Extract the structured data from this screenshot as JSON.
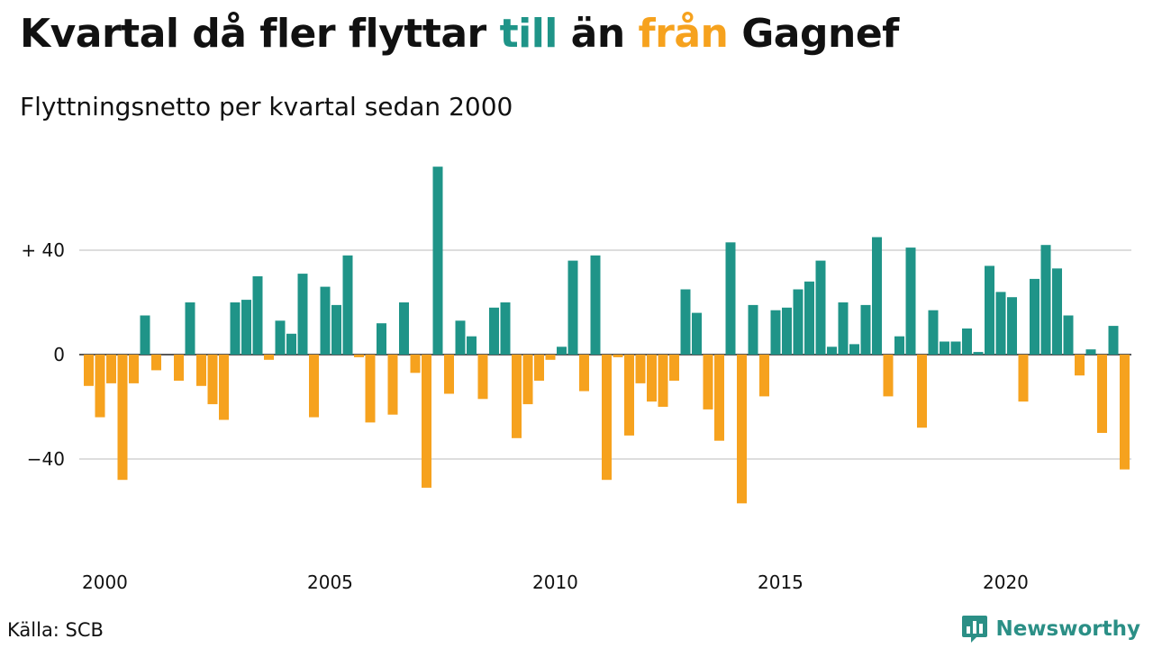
{
  "title": {
    "part1": "Kvartal då fler flyttar ",
    "till": "till",
    "part2": " än ",
    "fran": "från",
    "part3": " Gagnef"
  },
  "subtitle": "Flyttningsnetto per kvartal sedan 2000",
  "source": "Källa: SCB",
  "brand": {
    "name": "Newsworthy",
    "logo_icon": "newsworthy-bar-chart-icon"
  },
  "colors": {
    "positive": "#1f9488",
    "negative": "#f6a21e",
    "grid": "#dddddd",
    "brand": "#2b8f86"
  },
  "chart_data": {
    "type": "bar",
    "x_start": "2000 Q1",
    "x_tick_labels": [
      "2000",
      "2005",
      "2010",
      "2015",
      "2020"
    ],
    "y_tick_labels": [
      "+ 40",
      "0",
      "−40"
    ],
    "ylim": [
      -60,
      75
    ],
    "grid": true,
    "values": [
      -12,
      -24,
      -11,
      -48,
      -11,
      15,
      -6,
      0,
      -10,
      20,
      -12,
      -19,
      -25,
      20,
      21,
      30,
      -2,
      13,
      8,
      31,
      -24,
      26,
      19,
      38,
      -1,
      -26,
      12,
      -23,
      20,
      -7,
      -51,
      72,
      -15,
      13,
      7,
      -17,
      18,
      20,
      -32,
      -19,
      -10,
      -2,
      3,
      36,
      -14,
      38,
      -48,
      -1,
      -31,
      -11,
      -18,
      -20,
      -10,
      25,
      16,
      -21,
      -33,
      43,
      -57,
      19,
      -16,
      17,
      18,
      25,
      28,
      36,
      3,
      20,
      4,
      19,
      45,
      -16,
      7,
      41,
      -28,
      17,
      5,
      5,
      10,
      1,
      34,
      24,
      22,
      -18,
      29,
      42,
      33,
      15,
      -8,
      2,
      -30,
      11,
      -44
    ]
  }
}
